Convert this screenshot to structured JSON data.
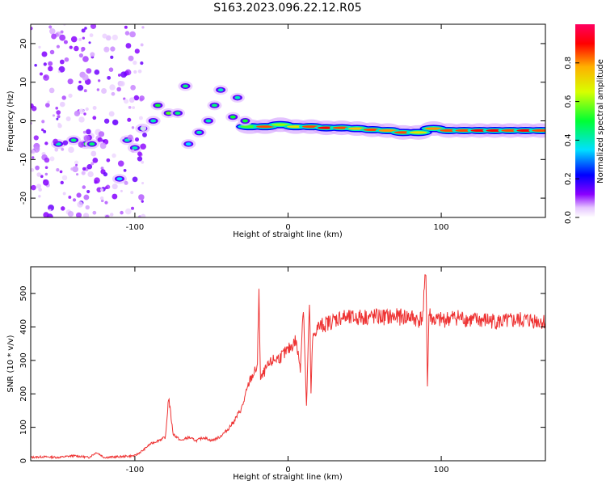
{
  "title": "S163.2023.096.22.12.R05",
  "chart_data": [
    {
      "type": "heatmap",
      "title": "S163.2023.096.22.12.R05",
      "xlabel": "Height of straight line (km)",
      "ylabel": "Frequency (Hz)",
      "xlim": [
        -168,
        168
      ],
      "ylim": [
        -25,
        25
      ],
      "xticks": [
        -100,
        0,
        100
      ],
      "xtick_labels": [
        "-100",
        "0",
        "100"
      ],
      "yticks": [
        -20,
        -10,
        0,
        10,
        20
      ],
      "ytick_labels": [
        "-20",
        "-10",
        "0",
        "10",
        "20"
      ],
      "colorbar": {
        "label": "Normalized spectral amplitude",
        "range": [
          0,
          1
        ],
        "ticks": [
          0.0,
          0.2,
          0.4,
          0.6,
          0.8
        ],
        "tick_labels": [
          "0.0",
          "0.2",
          "0.4",
          "0.6",
          "0.8"
        ],
        "colors": [
          "#ffffff",
          "#e6c6ff",
          "#8a00ff",
          "#0000ff",
          "#00e0ff",
          "#00ff33",
          "#d8ff00",
          "#ffb000",
          "#ff0000",
          "#ff0060"
        ]
      },
      "ridge": {
        "name": "Dominant frequency track",
        "points": [
          {
            "x": -25,
            "y": -1.5,
            "v": 0.55
          },
          {
            "x": -15,
            "y": -1.5,
            "v": 0.85
          },
          {
            "x": -5,
            "y": -1.0,
            "v": 0.6
          },
          {
            "x": 5,
            "y": -1.5,
            "v": 0.7
          },
          {
            "x": 15,
            "y": -1.5,
            "v": 0.85
          },
          {
            "x": 25,
            "y": -1.8,
            "v": 0.9
          },
          {
            "x": 35,
            "y": -1.8,
            "v": 0.85
          },
          {
            "x": 45,
            "y": -2.0,
            "v": 0.75
          },
          {
            "x": 55,
            "y": -2.3,
            "v": 0.85
          },
          {
            "x": 65,
            "y": -2.5,
            "v": 0.8
          },
          {
            "x": 75,
            "y": -3.0,
            "v": 0.85
          },
          {
            "x": 85,
            "y": -3.0,
            "v": 0.7
          },
          {
            "x": 95,
            "y": -2.0,
            "v": 0.8
          },
          {
            "x": 105,
            "y": -2.5,
            "v": 0.85
          },
          {
            "x": 115,
            "y": -2.5,
            "v": 0.85
          },
          {
            "x": 125,
            "y": -2.5,
            "v": 0.9
          },
          {
            "x": 135,
            "y": -2.5,
            "v": 0.9
          },
          {
            "x": 145,
            "y": -2.5,
            "v": 0.85
          },
          {
            "x": 155,
            "y": -2.5,
            "v": 0.9
          },
          {
            "x": 165,
            "y": -2.5,
            "v": 0.85
          }
        ]
      },
      "blobs": [
        {
          "x": -150,
          "y": -6,
          "v": 0.4
        },
        {
          "x": -140,
          "y": -5,
          "v": 0.45
        },
        {
          "x": -132,
          "y": -6,
          "v": 0.5
        },
        {
          "x": -128,
          "y": -6,
          "v": 0.45
        },
        {
          "x": -110,
          "y": -15,
          "v": 0.35
        },
        {
          "x": -105,
          "y": -5,
          "v": 0.4
        },
        {
          "x": -100,
          "y": -7,
          "v": 0.4
        },
        {
          "x": -95,
          "y": -2,
          "v": 0.45
        },
        {
          "x": -88,
          "y": 0,
          "v": 0.4
        },
        {
          "x": -85,
          "y": 4,
          "v": 0.5
        },
        {
          "x": -78,
          "y": 2,
          "v": 0.55
        },
        {
          "x": -72,
          "y": 2,
          "v": 0.45
        },
        {
          "x": -67,
          "y": 9,
          "v": 0.45
        },
        {
          "x": -65,
          "y": -6,
          "v": 0.35
        },
        {
          "x": -58,
          "y": -3,
          "v": 0.4
        },
        {
          "x": -52,
          "y": 0,
          "v": 0.4
        },
        {
          "x": -48,
          "y": 4,
          "v": 0.45
        },
        {
          "x": -44,
          "y": 8,
          "v": 0.4
        },
        {
          "x": -36,
          "y": 1,
          "v": 0.5
        },
        {
          "x": -33,
          "y": 6,
          "v": 0.4
        },
        {
          "x": -28,
          "y": 0,
          "v": 0.5
        }
      ]
    },
    {
      "type": "line",
      "xlabel": "Height of straight line (km)",
      "ylabel": "SNR (10 * v/v)",
      "xlim": [
        -168,
        168
      ],
      "ylim": [
        0,
        580
      ],
      "xticks": [
        -100,
        0,
        100
      ],
      "xtick_labels": [
        "-100",
        "0",
        "100"
      ],
      "yticks": [
        0,
        100,
        200,
        300,
        400,
        500
      ],
      "ytick_labels": [
        "0",
        "100",
        "200",
        "300",
        "400",
        "500"
      ],
      "series": [
        {
          "name": "SNR",
          "color": "#ee3333",
          "x": [
            -168,
            -160,
            -150,
            -140,
            -130,
            -125,
            -120,
            -110,
            -100,
            -95,
            -90,
            -85,
            -80,
            -78,
            -75,
            -70,
            -65,
            -60,
            -55,
            -50,
            -45,
            -40,
            -35,
            -30,
            -25,
            -20,
            -19,
            -18,
            -15,
            -10,
            -5,
            0,
            5,
            8,
            10,
            12,
            14,
            15,
            16,
            18,
            20,
            25,
            30,
            35,
            40,
            50,
            60,
            70,
            80,
            85,
            88,
            90,
            91,
            92,
            95,
            100,
            110,
            120,
            130,
            140,
            150,
            160,
            168
          ],
          "y": [
            10,
            12,
            10,
            15,
            10,
            25,
            10,
            12,
            15,
            30,
            50,
            60,
            70,
            190,
            80,
            60,
            70,
            60,
            70,
            60,
            70,
            90,
            120,
            160,
            240,
            280,
            520,
            240,
            270,
            300,
            310,
            330,
            360,
            280,
            470,
            160,
            470,
            200,
            360,
            390,
            400,
            410,
            420,
            430,
            425,
            430,
            430,
            430,
            430,
            420,
            430,
            580,
            220,
            440,
            420,
            420,
            430,
            420,
            420,
            415,
            420,
            420,
            415
          ]
        }
      ]
    }
  ]
}
